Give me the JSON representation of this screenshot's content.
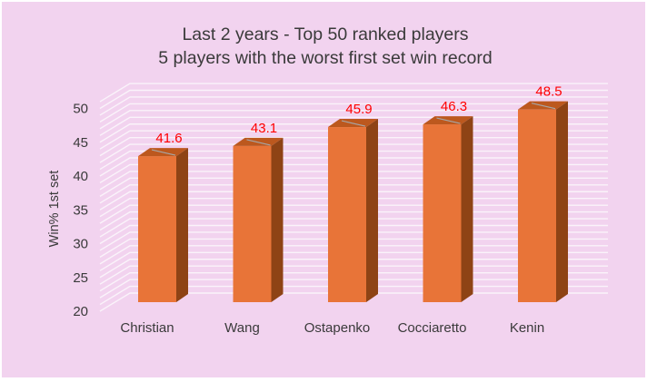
{
  "title": {
    "line1": "Last 2 years - Top 50 ranked players",
    "line2": "5 players with the worst first set win record"
  },
  "chart_data": {
    "type": "bar",
    "style": "3d-box-bars",
    "categories": [
      "Christian",
      "Wang",
      "Ostapenko",
      "Cocciaretto",
      "Kenin"
    ],
    "values": [
      41.6,
      43.1,
      45.9,
      46.3,
      48.5
    ],
    "value_labels": [
      "41.6",
      "43.1",
      "45.9",
      "46.3",
      "48.5"
    ],
    "title": "Last 2 years - Top 50 ranked players / 5 players with the worst first set win record",
    "xlabel": "",
    "ylabel": "Win% 1st set",
    "ylim": [
      20,
      50
    ],
    "yticks": [
      20,
      25,
      30,
      35,
      40,
      45,
      50
    ],
    "ytick_step": 5,
    "grid": "white horizontal minor gridlines every 1 unit on 3D back wall and side wall",
    "legend": "none"
  },
  "colors": {
    "plot_background": "#F2D3EF",
    "page_background": "#FFFFFF",
    "bar_front": "#E87438",
    "bar_top": "#BC581E",
    "bar_side": "#8E4315",
    "gridline": "#FAF3FA",
    "text": "#3A3A3A",
    "value_label": "#FF0000",
    "leader_line": "#A6A6A6"
  }
}
